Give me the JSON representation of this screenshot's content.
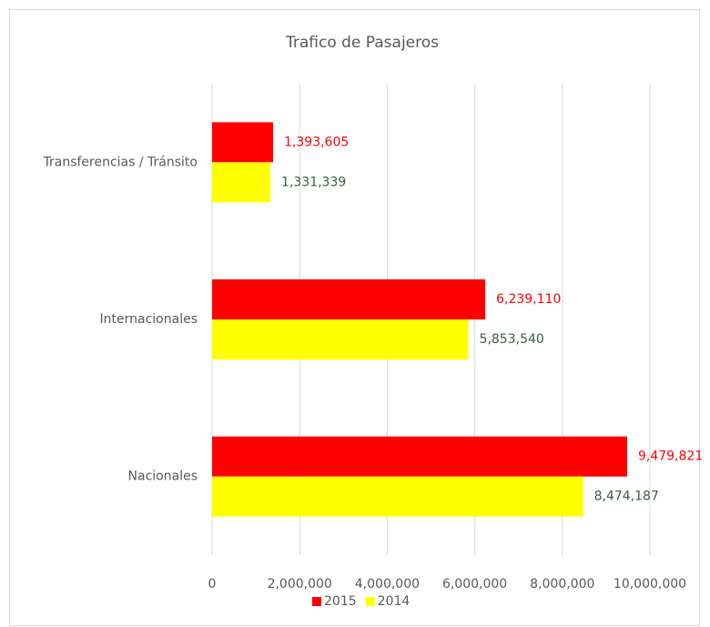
{
  "chart_data": {
    "type": "hbar",
    "title": "Trafico de Pasajeros",
    "categories": [
      "Transferencias / Tránsito",
      "Internacionales",
      "Nacionales"
    ],
    "series": [
      {
        "name": "2015",
        "color": "#ff0000",
        "label_color": "#ff0000",
        "values": [
          1393605,
          6239110,
          9479821
        ],
        "value_labels": [
          "1,393,605",
          "6,239,110",
          "9,479,821"
        ]
      },
      {
        "name": "2014",
        "color": "#ffff00",
        "label_color": "#375f3f",
        "values": [
          1331339,
          5853540,
          8474187
        ],
        "value_labels": [
          "1,331,339",
          "5,853,540",
          "8,474,187"
        ]
      }
    ],
    "xlim": [
      0,
      10000000
    ],
    "xticks": [
      0,
      {
        "value": 2000000,
        "label": "2,000,000"
      },
      {
        "value": 4000000,
        "label": "4,000,000"
      },
      {
        "value": 6000000,
        "label": "6,000,000"
      },
      {
        "value": 8000000,
        "label": "8,000,000"
      },
      {
        "value": 10000000,
        "label": "10,000,000"
      }
    ],
    "grid": true,
    "legend": "bottom"
  }
}
